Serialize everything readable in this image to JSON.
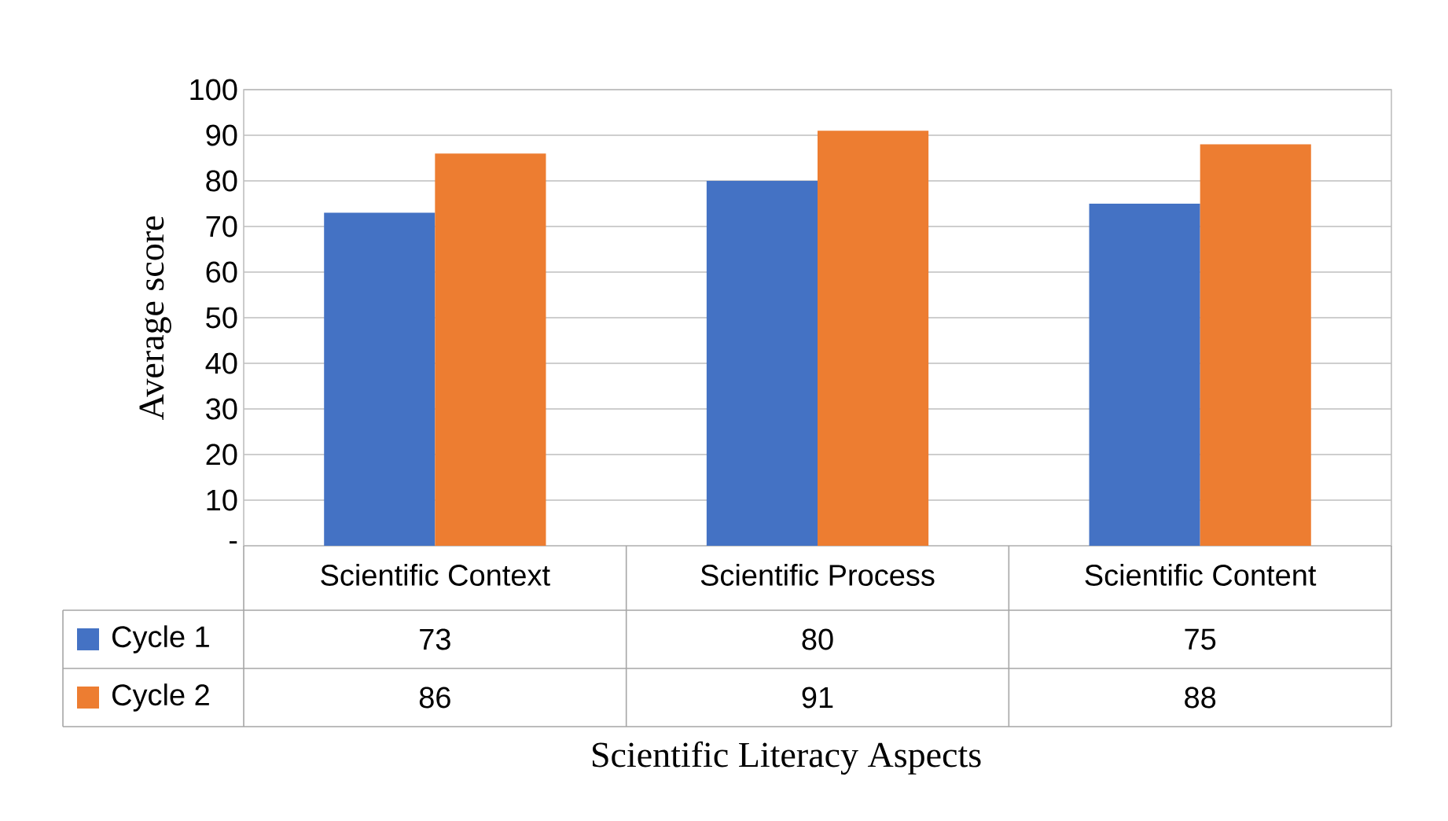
{
  "chart_data": {
    "type": "bar",
    "xlabel": "Scientific Literacy Aspects",
    "ylabel": "Average score",
    "categories": [
      "Scientific Context",
      "Scientific Process",
      "Scientific Content"
    ],
    "series": [
      {
        "name": "Cycle 1",
        "color": "#4472c4",
        "values": [
          73,
          80,
          75
        ]
      },
      {
        "name": "Cycle 2",
        "color": "#ed7d31",
        "values": [
          86,
          91,
          88
        ]
      }
    ],
    "ylim": [
      0,
      100
    ],
    "yticks": [
      {
        "value": 0,
        "label": "-"
      },
      10,
      20,
      30,
      40,
      50,
      60,
      70,
      80,
      90,
      100
    ],
    "grid": "y",
    "legend": "bottom",
    "data_labels": true
  }
}
